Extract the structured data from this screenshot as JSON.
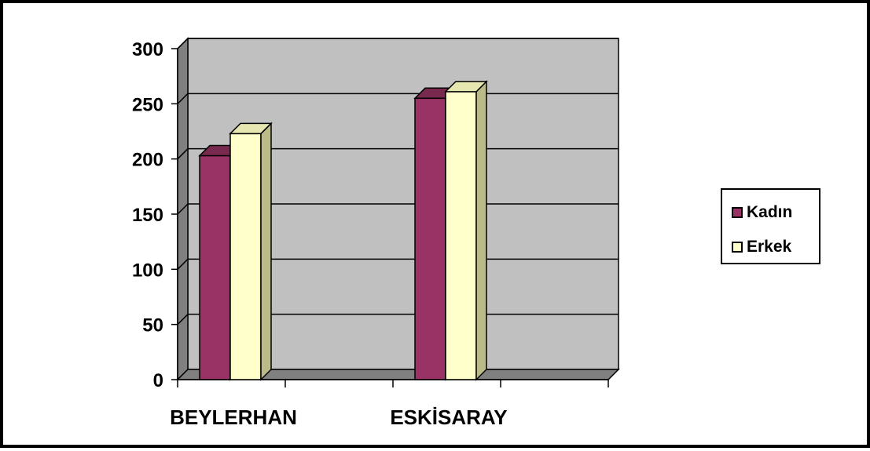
{
  "chart_data": {
    "type": "bar",
    "categories": [
      "BEYLERHAN",
      "ESKİSARAY"
    ],
    "series": [
      {
        "name": "Kadın",
        "values": [
          203,
          255
        ]
      },
      {
        "name": "Erkek",
        "values": [
          223,
          261
        ]
      }
    ],
    "title": "",
    "xlabel": "",
    "ylabel": "",
    "ylim": [
      0,
      300
    ],
    "yticks": [
      "0",
      "50",
      "100",
      "150",
      "200",
      "250",
      "300"
    ],
    "grid": true,
    "three_d": true,
    "legend_position": "right",
    "colors": {
      "kadin": "#993366",
      "erkek": "#ffffcc",
      "plot_wall": "#c0c0c0",
      "side_wall": "#808080",
      "floor": "#808080"
    }
  }
}
